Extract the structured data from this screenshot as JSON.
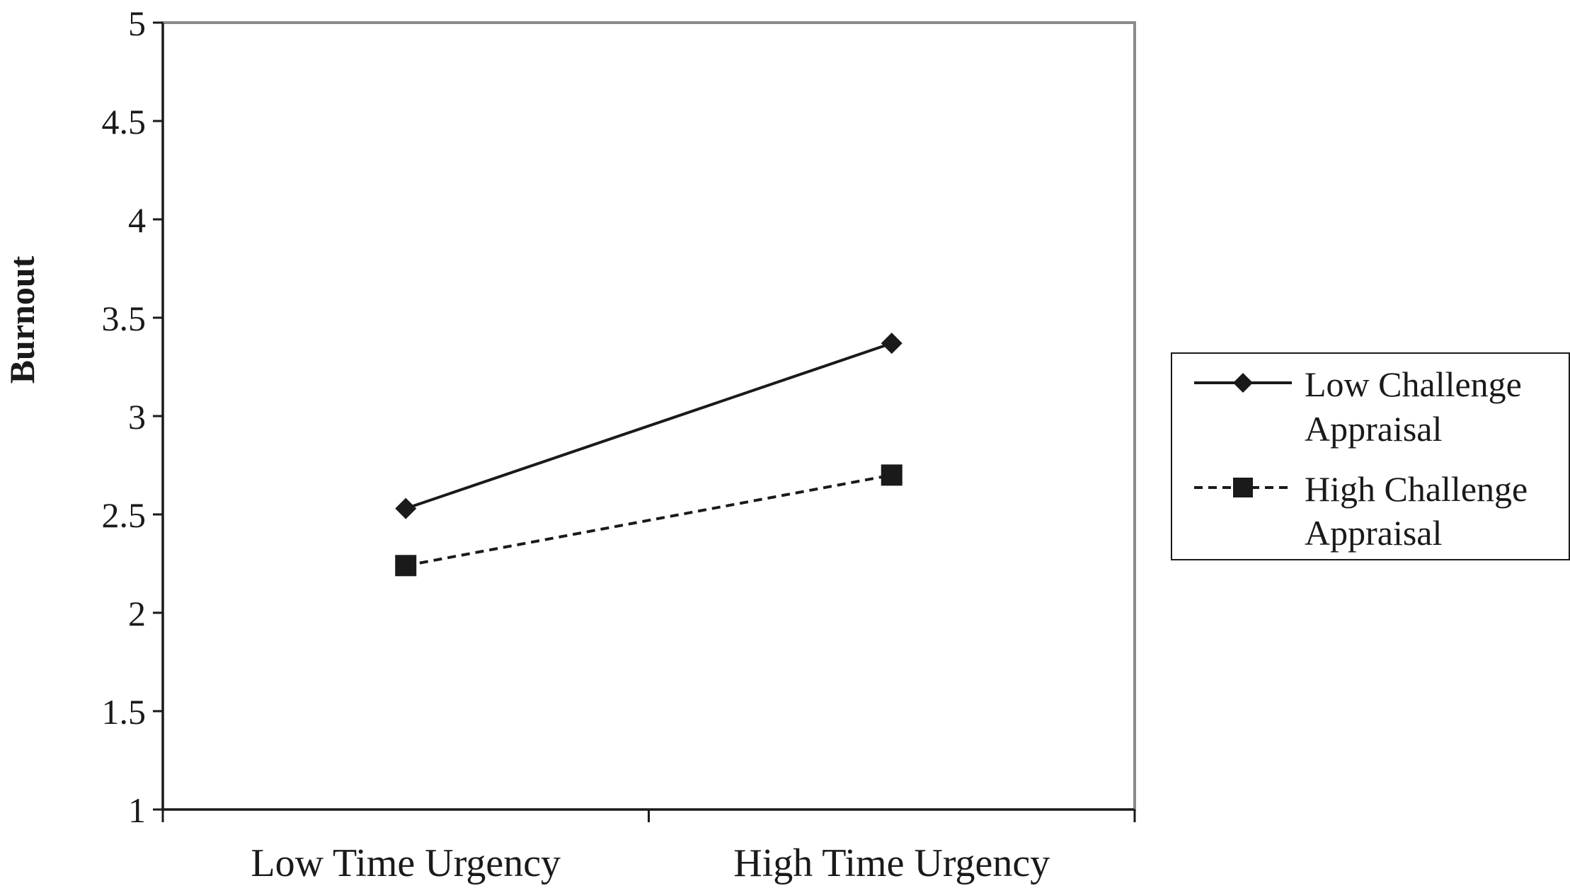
{
  "chart_data": {
    "type": "line",
    "title": "",
    "xlabel": "",
    "ylabel": "Burnout",
    "categories": [
      "Low Time Urgency",
      "High Time Urgency"
    ],
    "ylim": [
      1,
      5
    ],
    "yticks": [
      1,
      1.5,
      2,
      2.5,
      3,
      3.5,
      4,
      4.5,
      5
    ],
    "ytick_labels": [
      "1",
      "1.5",
      "2",
      "2.5",
      "3",
      "3.5",
      "4",
      "4.5",
      "5"
    ],
    "grid": false,
    "legend_position": "right",
    "series": [
      {
        "name": "Low Challenge Appraisal",
        "legend_lines": [
          "Low Challenge",
          "Appraisal"
        ],
        "values": [
          2.53,
          3.37
        ],
        "marker": "diamond",
        "line_style": "solid",
        "color": "#1a1a1a"
      },
      {
        "name": "High Challenge Appraisal",
        "legend_lines": [
          "High Challenge",
          "Appraisal"
        ],
        "values": [
          2.24,
          2.7
        ],
        "marker": "square",
        "line_style": "dashed",
        "color": "#1a1a1a"
      }
    ]
  }
}
